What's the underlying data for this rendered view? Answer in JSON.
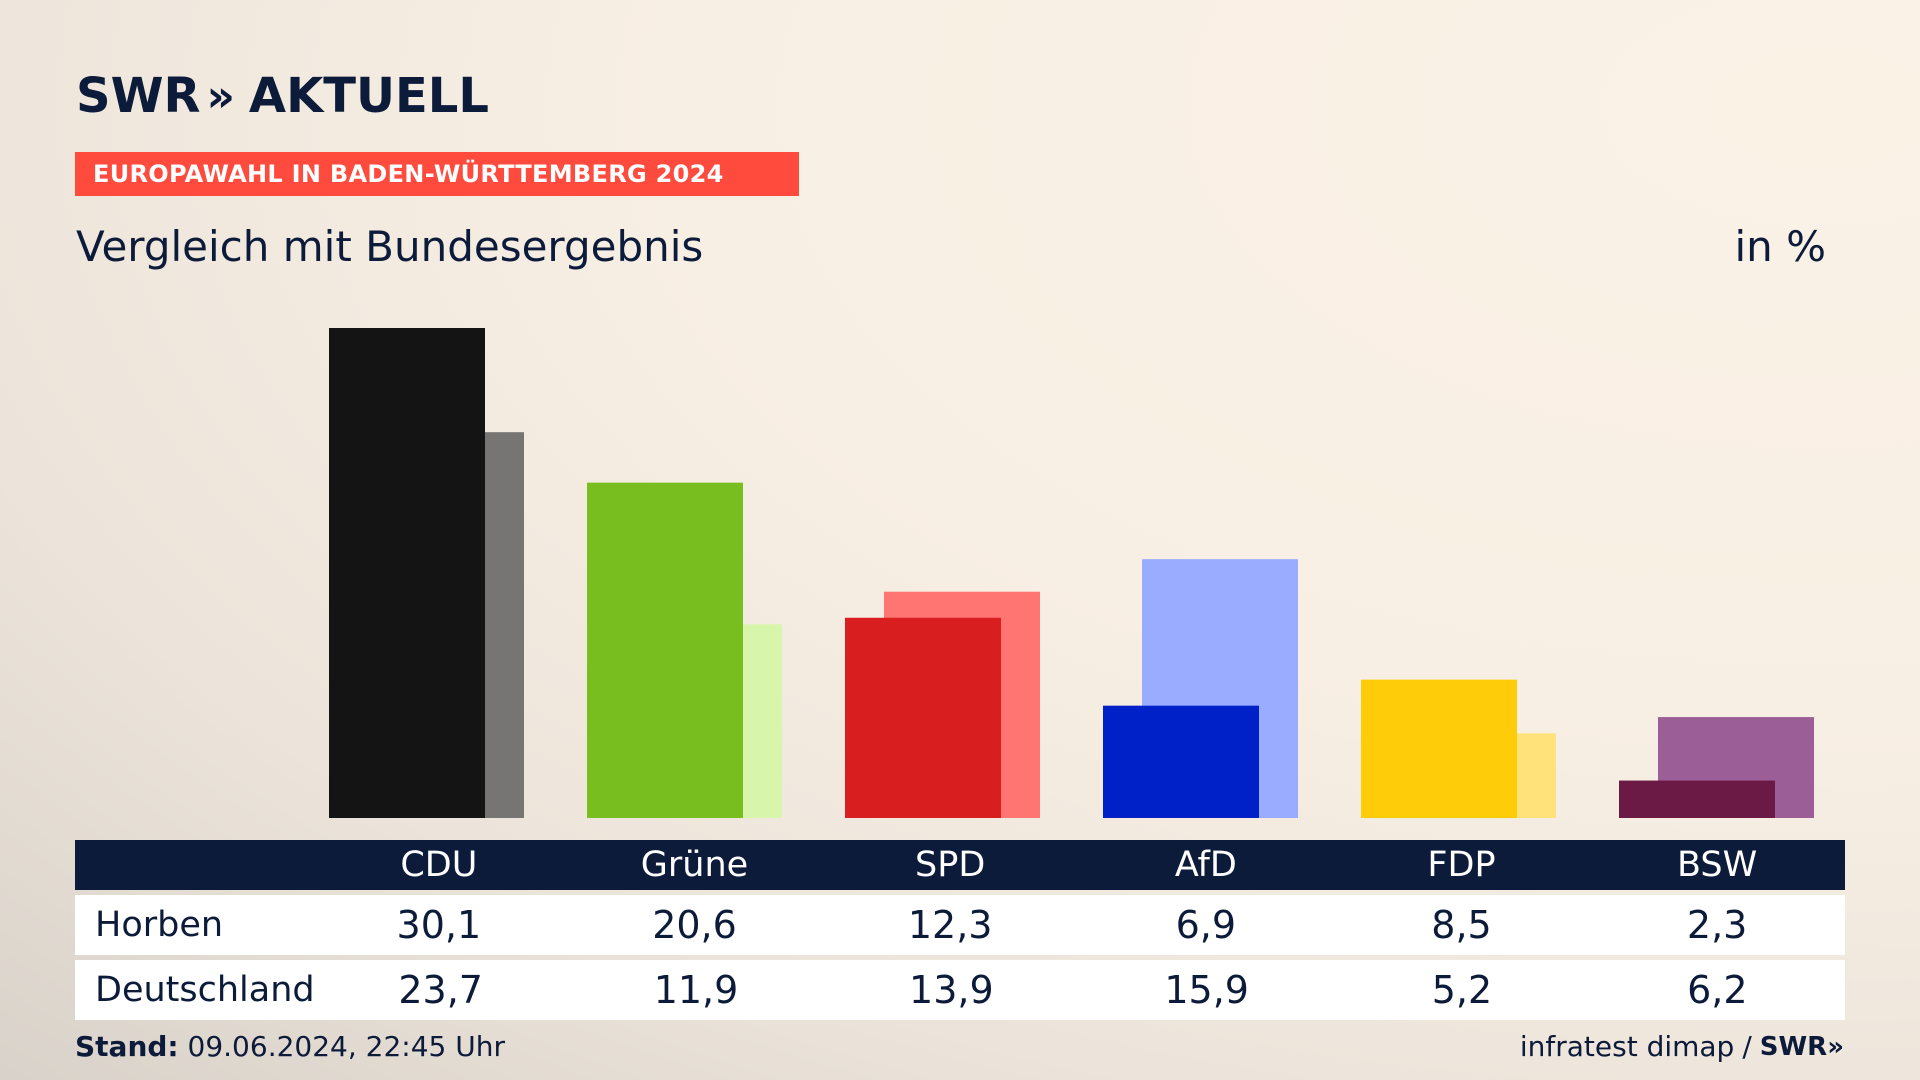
{
  "brand": {
    "logo_text": "SWR",
    "logo_chevrons": "»",
    "logo_sub": "AKTUELL"
  },
  "kicker": "EUROPAWAHL IN BADEN-WÜRTTEMBERG 2024",
  "title": "Vergleich mit Bundesergebnis",
  "unit": "in %",
  "chart_data": {
    "type": "bar",
    "categories": [
      "CDU",
      "Grüne",
      "SPD",
      "AfD",
      "FDP",
      "BSW"
    ],
    "series": [
      {
        "name": "Horben",
        "values": [
          30.1,
          20.6,
          12.3,
          6.9,
          8.5,
          2.3
        ]
      },
      {
        "name": "Deutschland",
        "values": [
          23.7,
          11.9,
          13.9,
          15.9,
          5.2,
          6.2
        ]
      }
    ],
    "colors_primary": [
      "#141414",
      "#78be1e",
      "#d81e1e",
      "#0020c8",
      "#ffcc0a",
      "#6b1a45"
    ],
    "colors_secondary": [
      "#767574",
      "#d7f5ab",
      "#ff7571",
      "#9aacff",
      "#ffe37a",
      "#9b5e96"
    ],
    "ylim": [
      0,
      30.1
    ]
  },
  "table": {
    "header_label": "",
    "rows": [
      {
        "label": "Horben",
        "values": [
          "30,1",
          "20,6",
          "12,3",
          "6,9",
          "8,5",
          "2,3"
        ]
      },
      {
        "label": "Deutschland",
        "values": [
          "23,7",
          "11,9",
          "13,9",
          "15,9",
          "5,2",
          "6,2"
        ]
      }
    ]
  },
  "footer": {
    "stand_label": "Stand:",
    "stand_value": "09.06.2024, 22:45 Uhr",
    "source": "infratest dimap",
    "separator": "/",
    "source_brand": "SWR",
    "source_brand_chevrons": "»"
  }
}
